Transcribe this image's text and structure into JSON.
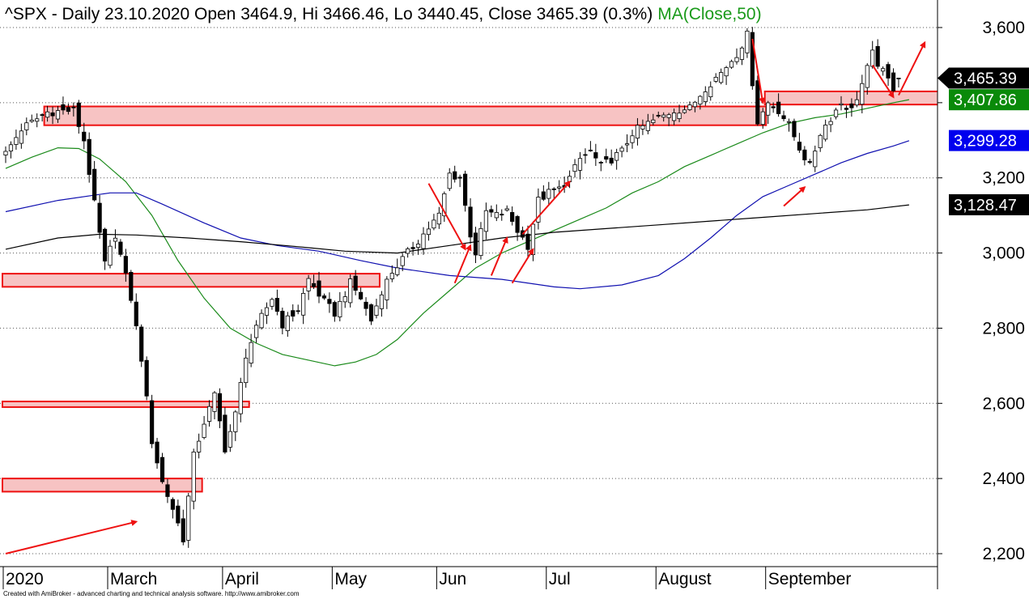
{
  "header": {
    "title": "^SPX - Daily 23.10.2020 Open 3464.9, Hi 3466.46, Lo 3440.45, Close 3465.39 (0.3%)",
    "ma_label": "MA(Close,50)"
  },
  "footer": {
    "credit": "Created with AmiBroker - advanced charting and technical analysis software. http://www.amibroker.com"
  },
  "colors": {
    "ma50": "#1a8a1a",
    "ma100": "#1010b0",
    "ma200": "#000000",
    "zone_fill": "#f7c3c3",
    "zone_stroke": "#ee1111",
    "arrow": "#ee1111",
    "badge_price": "#000000",
    "badge_ma50": "#0a8a0a",
    "badge_ma100": "#0000ee",
    "badge_ma200": "#000000"
  },
  "chart_data": {
    "type": "candlestick",
    "title": "^SPX - Daily 23.10.2020 Open 3464.9, Hi 3466.46, Lo 3440.45, Close 3465.39 (0.3%)",
    "ylim": [
      2180,
      3640
    ],
    "grid": "horizontal dotted",
    "y_ticks": [
      2200,
      2400,
      2600,
      2800,
      3000,
      3200,
      3400,
      3600
    ],
    "y_tick_labels": [
      "2,200",
      "2,400",
      "2,600",
      "2,800",
      "3,000",
      "3,200",
      "",
      "3,600"
    ],
    "x_months": [
      {
        "label": "2020",
        "index": 0
      },
      {
        "label": "March",
        "index": 20
      },
      {
        "label": "April",
        "index": 42
      },
      {
        "label": "May",
        "index": 63
      },
      {
        "label": "Jun",
        "index": 83
      },
      {
        "label": "Jul",
        "index": 104
      },
      {
        "label": "August",
        "index": 125
      },
      {
        "label": "September",
        "index": 146
      }
    ],
    "anchors": [
      {
        "i": 0,
        "c": 3265
      },
      {
        "i": 3,
        "c": 3330
      },
      {
        "i": 8,
        "c": 3375
      },
      {
        "i": 13,
        "c": 3380
      },
      {
        "i": 15,
        "c": 3300
      },
      {
        "i": 17,
        "c": 3130
      },
      {
        "i": 19,
        "c": 2970
      },
      {
        "i": 21,
        "c": 3050
      },
      {
        "i": 24,
        "c": 2880
      },
      {
        "i": 26,
        "c": 2720
      },
      {
        "i": 28,
        "c": 2500
      },
      {
        "i": 30,
        "c": 2390
      },
      {
        "i": 32,
        "c": 2320
      },
      {
        "i": 34,
        "c": 2240
      },
      {
        "i": 36,
        "c": 2460
      },
      {
        "i": 38,
        "c": 2550
      },
      {
        "i": 40,
        "c": 2620
      },
      {
        "i": 42,
        "c": 2480
      },
      {
        "i": 44,
        "c": 2570
      },
      {
        "i": 46,
        "c": 2730
      },
      {
        "i": 49,
        "c": 2830
      },
      {
        "i": 51,
        "c": 2880
      },
      {
        "i": 53,
        "c": 2810
      },
      {
        "i": 56,
        "c": 2850
      },
      {
        "i": 58,
        "c": 2930
      },
      {
        "i": 61,
        "c": 2870
      },
      {
        "i": 63,
        "c": 2840
      },
      {
        "i": 66,
        "c": 2920
      },
      {
        "i": 68,
        "c": 2880
      },
      {
        "i": 70,
        "c": 2820
      },
      {
        "i": 72,
        "c": 2900
      },
      {
        "i": 74,
        "c": 2950
      },
      {
        "i": 77,
        "c": 3000
      },
      {
        "i": 80,
        "c": 3050
      },
      {
        "i": 83,
        "c": 3100
      },
      {
        "i": 85,
        "c": 3210
      },
      {
        "i": 87,
        "c": 3200
      },
      {
        "i": 89,
        "c": 3050
      },
      {
        "i": 90,
        "c": 3000
      },
      {
        "i": 92,
        "c": 3110
      },
      {
        "i": 94,
        "c": 3100
      },
      {
        "i": 96,
        "c": 3110
      },
      {
        "i": 98,
        "c": 3060
      },
      {
        "i": 100,
        "c": 3020
      },
      {
        "i": 102,
        "c": 3140
      },
      {
        "i": 104,
        "c": 3160
      },
      {
        "i": 106,
        "c": 3170
      },
      {
        "i": 108,
        "c": 3200
      },
      {
        "i": 110,
        "c": 3250
      },
      {
        "i": 112,
        "c": 3270
      },
      {
        "i": 114,
        "c": 3230
      },
      {
        "i": 116,
        "c": 3250
      },
      {
        "i": 118,
        "c": 3270
      },
      {
        "i": 120,
        "c": 3320
      },
      {
        "i": 123,
        "c": 3345
      },
      {
        "i": 126,
        "c": 3365
      },
      {
        "i": 128,
        "c": 3380
      },
      {
        "i": 131,
        "c": 3385
      },
      {
        "i": 134,
        "c": 3440
      },
      {
        "i": 137,
        "c": 3480
      },
      {
        "i": 140,
        "c": 3530
      },
      {
        "i": 142,
        "c": 3580
      },
      {
        "i": 143,
        "c": 3455
      },
      {
        "i": 144,
        "c": 3350
      },
      {
        "i": 146,
        "c": 3400
      },
      {
        "i": 148,
        "c": 3380
      },
      {
        "i": 150,
        "c": 3340
      },
      {
        "i": 152,
        "c": 3280
      },
      {
        "i": 154,
        "c": 3230
      },
      {
        "i": 156,
        "c": 3320
      },
      {
        "i": 158,
        "c": 3360
      },
      {
        "i": 160,
        "c": 3400
      },
      {
        "i": 162,
        "c": 3380
      },
      {
        "i": 164,
        "c": 3450
      },
      {
        "i": 166,
        "c": 3530
      },
      {
        "i": 168,
        "c": 3480
      },
      {
        "i": 170,
        "c": 3440
      },
      {
        "i": 171,
        "c": 3470
      }
    ],
    "last": {
      "open": 3464.9,
      "high": 3466.46,
      "low": 3440.45,
      "close": 3465.39
    },
    "zones": [
      {
        "from": 8,
        "to": 145,
        "low": 3340,
        "high": 3390
      },
      {
        "from": 146,
        "to": 179,
        "low": 3395,
        "high": 3430
      },
      {
        "from": 0,
        "to": 71,
        "low": 2910,
        "high": 2945
      },
      {
        "from": 0,
        "to": 46,
        "low": 2590,
        "high": 2605
      },
      {
        "from": 0,
        "to": 37,
        "low": 2365,
        "high": 2400
      }
    ],
    "series": [
      {
        "name": "MA(Close,50)",
        "values": [
          [
            0,
            3225
          ],
          [
            5,
            3255
          ],
          [
            10,
            3280
          ],
          [
            14,
            3278
          ],
          [
            18,
            3250
          ],
          [
            23,
            3190
          ],
          [
            28,
            3100
          ],
          [
            33,
            2980
          ],
          [
            38,
            2880
          ],
          [
            43,
            2800
          ],
          [
            48,
            2760
          ],
          [
            53,
            2730
          ],
          [
            58,
            2715
          ],
          [
            63,
            2700
          ],
          [
            67,
            2710
          ],
          [
            71,
            2730
          ],
          [
            75,
            2770
          ],
          [
            80,
            2840
          ],
          [
            85,
            2900
          ],
          [
            90,
            2960
          ],
          [
            95,
            3000
          ],
          [
            100,
            3030
          ],
          [
            105,
            3060
          ],
          [
            110,
            3090
          ],
          [
            115,
            3120
          ],
          [
            120,
            3160
          ],
          [
            125,
            3190
          ],
          [
            130,
            3230
          ],
          [
            135,
            3260
          ],
          [
            140,
            3290
          ],
          [
            145,
            3320
          ],
          [
            150,
            3345
          ],
          [
            155,
            3360
          ],
          [
            160,
            3370
          ],
          [
            165,
            3385
          ],
          [
            170,
            3400
          ],
          [
            173,
            3408
          ]
        ]
      },
      {
        "name": "",
        "values": [
          [
            0,
            3110
          ],
          [
            10,
            3140
          ],
          [
            20,
            3160
          ],
          [
            25,
            3160
          ],
          [
            30,
            3130
          ],
          [
            38,
            3080
          ],
          [
            45,
            3040
          ],
          [
            52,
            3020
          ],
          [
            60,
            3005
          ],
          [
            68,
            2980
          ],
          [
            75,
            2960
          ],
          [
            85,
            2940
          ],
          [
            95,
            2930
          ],
          [
            105,
            2910
          ],
          [
            110,
            2905
          ],
          [
            118,
            2915
          ],
          [
            125,
            2940
          ],
          [
            130,
            2985
          ],
          [
            135,
            3040
          ],
          [
            140,
            3100
          ],
          [
            145,
            3150
          ],
          [
            150,
            3180
          ],
          [
            155,
            3210
          ],
          [
            160,
            3240
          ],
          [
            165,
            3265
          ],
          [
            170,
            3285
          ],
          [
            173,
            3299
          ]
        ]
      },
      {
        "name": "",
        "values": [
          [
            0,
            3010
          ],
          [
            10,
            3040
          ],
          [
            18,
            3050
          ],
          [
            25,
            3048
          ],
          [
            35,
            3040
          ],
          [
            45,
            3030
          ],
          [
            55,
            3018
          ],
          [
            65,
            3005
          ],
          [
            75,
            3000
          ],
          [
            85,
            3020
          ],
          [
            95,
            3040
          ],
          [
            105,
            3055
          ],
          [
            115,
            3065
          ],
          [
            125,
            3075
          ],
          [
            135,
            3085
          ],
          [
            145,
            3095
          ],
          [
            155,
            3105
          ],
          [
            165,
            3115
          ],
          [
            173,
            3128
          ]
        ]
      }
    ],
    "badges": [
      {
        "value": "3,465.39",
        "v": 3465.39,
        "kind": "price"
      },
      {
        "value": "3,407.86",
        "v": 3407.86,
        "kind": "ma50"
      },
      {
        "value": "3,299.28",
        "v": 3299.28,
        "kind": "ma100"
      },
      {
        "value": "3,128.47",
        "v": 3128.47,
        "kind": "ma200"
      }
    ],
    "arrows": [
      {
        "from": [
          0,
          2200
        ],
        "to": [
          25,
          2285
        ]
      },
      {
        "from": [
          81,
          3185
        ],
        "to": [
          88,
          3010
        ]
      },
      {
        "from": [
          86,
          2920
        ],
        "to": [
          89,
          3020
        ]
      },
      {
        "from": [
          93,
          2940
        ],
        "to": [
          96,
          3040
        ]
      },
      {
        "from": [
          97,
          2920
        ],
        "to": [
          101,
          3010
        ]
      },
      {
        "from": [
          99,
          3050
        ],
        "to": [
          108,
          3190
        ]
      },
      {
        "from": [
          143,
          3570
        ],
        "to": [
          145,
          3400
        ]
      },
      {
        "from": [
          149,
          3125
        ],
        "to": [
          153,
          3175
        ]
      },
      {
        "from": [
          166,
          3500
        ],
        "to": [
          170,
          3415
        ]
      },
      {
        "from": [
          171,
          3420
        ],
        "to": [
          176,
          3560
        ]
      }
    ]
  }
}
